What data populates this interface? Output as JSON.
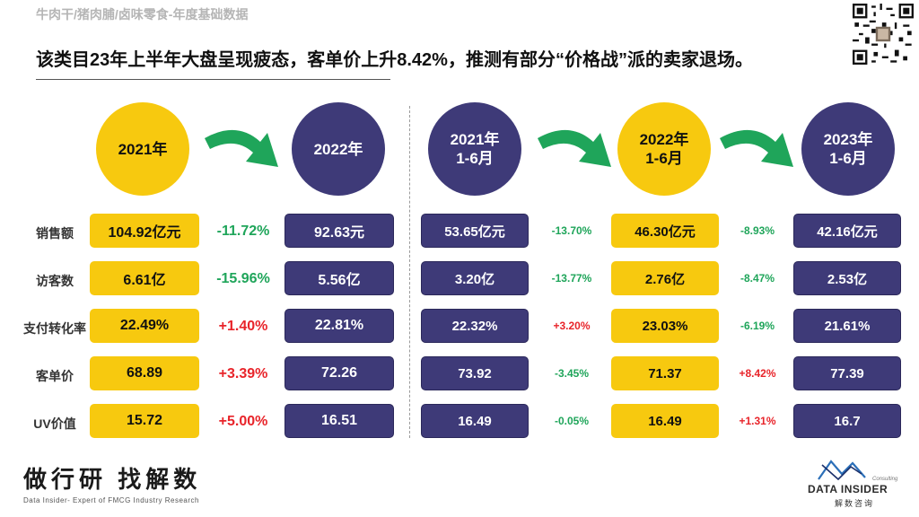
{
  "header": {
    "subtitle": "牛肉干/猪肉脯/卤味零食-年度基础数据",
    "headline": "该类目23年上半年大盘呈现疲态，客单价上升8.42%，推测有部分“价格战”派的卖家退场。"
  },
  "row_labels": [
    "销售额",
    "访客数",
    "支付转化率",
    "客单价",
    "UV价值"
  ],
  "left_panel": {
    "periods": [
      "2021年",
      "2022年"
    ],
    "col_2021": [
      "104.92亿元",
      "6.61亿",
      "22.49%",
      "68.89",
      "15.72"
    ],
    "deltas": [
      "-11.72%",
      "-15.96%",
      "+1.40%",
      "+3.39%",
      "+5.00%"
    ],
    "col_2022": [
      "92.63元",
      "5.56亿",
      "22.81%",
      "72.26",
      "16.51"
    ]
  },
  "right_panel": {
    "periods": [
      "2021年\n1-6月",
      "2022年\n1-6月",
      "2023年\n1-6月"
    ],
    "col_2021h1": [
      "53.65亿元",
      "3.20亿",
      "22.32%",
      "73.92",
      "16.49"
    ],
    "deltas_a": [
      "-13.70%",
      "-13.77%",
      "+3.20%",
      "-3.45%",
      "-0.05%"
    ],
    "col_2022h1": [
      "46.30亿元",
      "2.76亿",
      "23.03%",
      "71.37",
      "16.49"
    ],
    "deltas_b": [
      "-8.93%",
      "-8.47%",
      "-6.19%",
      "+8.42%",
      "+1.31%"
    ],
    "col_2023h1": [
      "42.16亿元",
      "2.53亿",
      "21.61%",
      "77.39",
      "16.7"
    ]
  },
  "colors": {
    "yellow": "#f7c90f",
    "navy": "#3e3a78",
    "green": "#1fa55a",
    "red": "#e8242a"
  },
  "footer": {
    "brand_cn": "做行研 找解数",
    "brand_en": "Data Insider- Expert of FMCG Industry Research",
    "logo_consulting": "Consulting",
    "logo_text": "DATA INSIDER",
    "logo_cn": "解数咨询"
  }
}
